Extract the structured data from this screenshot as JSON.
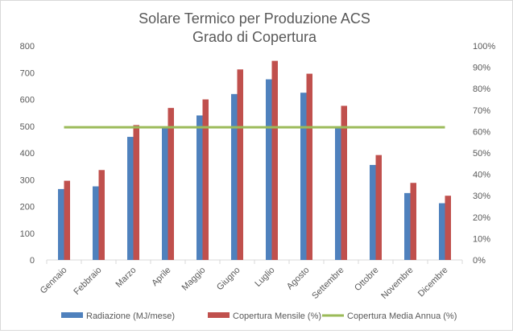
{
  "chart_data": {
    "type": "bar",
    "title": [
      "Solare Termico per Produzione ACS",
      "Grado di Copertura"
    ],
    "categories": [
      "Gennaio",
      "Febbraio",
      "Marzo",
      "Aprile",
      "Maggio",
      "Giugno",
      "Luglio",
      "Agosto",
      "Settembre",
      "Ottobre",
      "Novembre",
      "Dicembre"
    ],
    "series": [
      {
        "name": "Radiazione (MJ/mese)",
        "axis": "left",
        "kind": "bar",
        "color": "#4f81bd",
        "values": [
          265,
          275,
          460,
          495,
          540,
          620,
          675,
          625,
          495,
          355,
          250,
          212
        ]
      },
      {
        "name": "Copertura Mensile (%)",
        "axis": "right",
        "kind": "bar",
        "color": "#c0504d",
        "values": [
          37,
          42,
          63,
          71,
          75,
          89,
          93,
          87,
          72,
          49,
          36,
          30
        ]
      },
      {
        "name": "Copertura Media Annua (%)",
        "axis": "right",
        "kind": "line",
        "color": "#9bbb59",
        "values": [
          62,
          62,
          62,
          62,
          62,
          62,
          62,
          62,
          62,
          62,
          62,
          62
        ]
      }
    ],
    "y_left": {
      "min": 0,
      "max": 800,
      "ticks": [
        "0",
        "100",
        "200",
        "300",
        "400",
        "500",
        "600",
        "700",
        "800"
      ]
    },
    "y_right": {
      "min": 0,
      "max": 100,
      "ticks": [
        "0%",
        "10%",
        "20%",
        "30%",
        "40%",
        "50%",
        "60%",
        "70%",
        "80%",
        "90%",
        "100%"
      ]
    },
    "grid": false,
    "legend_position": "bottom"
  }
}
